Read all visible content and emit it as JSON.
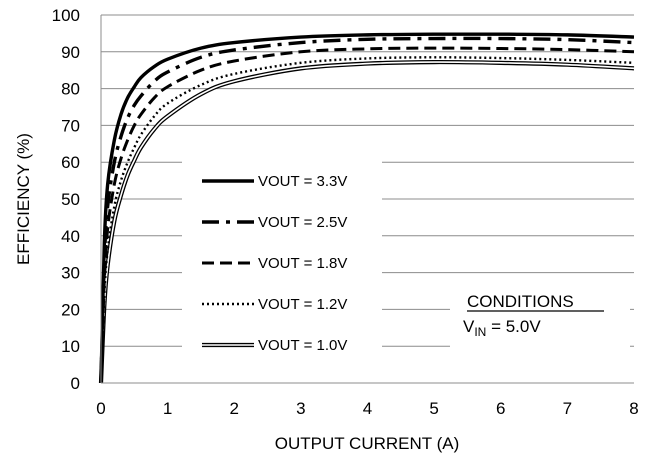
{
  "chart_data": {
    "type": "line",
    "title": "",
    "xlabel": "OUTPUT CURRENT (A)",
    "ylabel": "EFFICIENCY (%)",
    "xlim": [
      0,
      8
    ],
    "ylim": [
      0,
      100
    ],
    "x_ticks": [
      "0",
      "1",
      "2",
      "3",
      "4",
      "5",
      "6",
      "7",
      "8"
    ],
    "y_ticks": [
      "0",
      "10",
      "20",
      "30",
      "40",
      "50",
      "60",
      "70",
      "80",
      "90",
      "100"
    ],
    "grid": "horizontal",
    "legend_position": "center-left",
    "series": [
      {
        "name": "VOUT = 3.3V",
        "style": "solid-thick",
        "x": [
          0,
          0.05,
          0.1,
          0.2,
          0.3,
          0.4,
          0.5,
          0.6,
          0.8,
          1.0,
          1.5,
          2.0,
          3.0,
          4.0,
          5.0,
          6.0,
          7.0,
          8.0
        ],
        "y": [
          0,
          38,
          54,
          66,
          73,
          77.5,
          80.5,
          83,
          86,
          88,
          91,
          92.5,
          94,
          94.6,
          94.8,
          94.8,
          94.6,
          94
        ]
      },
      {
        "name": "VOUT = 2.5V",
        "style": "dash-dot",
        "x": [
          0,
          0.05,
          0.1,
          0.2,
          0.3,
          0.4,
          0.5,
          0.6,
          0.8,
          1.0,
          1.5,
          2.0,
          3.0,
          4.0,
          5.0,
          6.0,
          7.0,
          8.0
        ],
        "y": [
          0,
          33,
          48,
          60,
          67,
          72,
          75.5,
          78,
          82,
          84.5,
          88.5,
          90.5,
          92.5,
          93.4,
          93.6,
          93.6,
          93.3,
          92.5
        ]
      },
      {
        "name": "VOUT = 1.8V",
        "style": "dash",
        "x": [
          0,
          0.05,
          0.1,
          0.2,
          0.3,
          0.4,
          0.5,
          0.6,
          0.8,
          1.0,
          1.5,
          2.0,
          3.0,
          4.0,
          5.0,
          6.0,
          7.0,
          8.0
        ],
        "y": [
          0,
          28,
          42,
          54,
          61,
          66,
          70,
          73,
          77.5,
          80.5,
          85,
          87.5,
          90,
          90.8,
          91,
          90.9,
          90.6,
          90
        ]
      },
      {
        "name": "VOUT = 1.2V",
        "style": "dotted",
        "x": [
          0,
          0.05,
          0.1,
          0.2,
          0.3,
          0.4,
          0.5,
          0.6,
          0.8,
          1.0,
          1.5,
          2.0,
          3.0,
          4.0,
          5.0,
          6.0,
          7.0,
          8.0
        ],
        "y": [
          0,
          24,
          36,
          48,
          55,
          60,
          64,
          67.5,
          72.5,
          76,
          81,
          84,
          87,
          88.2,
          88.5,
          88.3,
          87.8,
          87
        ]
      },
      {
        "name": "VOUT = 1.0V",
        "style": "double",
        "x": [
          0,
          0.05,
          0.1,
          0.2,
          0.3,
          0.4,
          0.5,
          0.6,
          0.8,
          1.0,
          1.5,
          2.0,
          3.0,
          4.0,
          5.0,
          6.0,
          7.0,
          8.0
        ],
        "y": [
          0,
          21,
          32,
          44,
          51,
          56.5,
          60.5,
          64,
          69,
          72.5,
          78.5,
          82,
          85.5,
          86.8,
          87.2,
          87,
          86.5,
          85.5
        ]
      }
    ],
    "annotation": {
      "heading": "CONDITIONS",
      "main": "V",
      "subscript": "IN",
      "rest": " = 5.0V"
    }
  }
}
